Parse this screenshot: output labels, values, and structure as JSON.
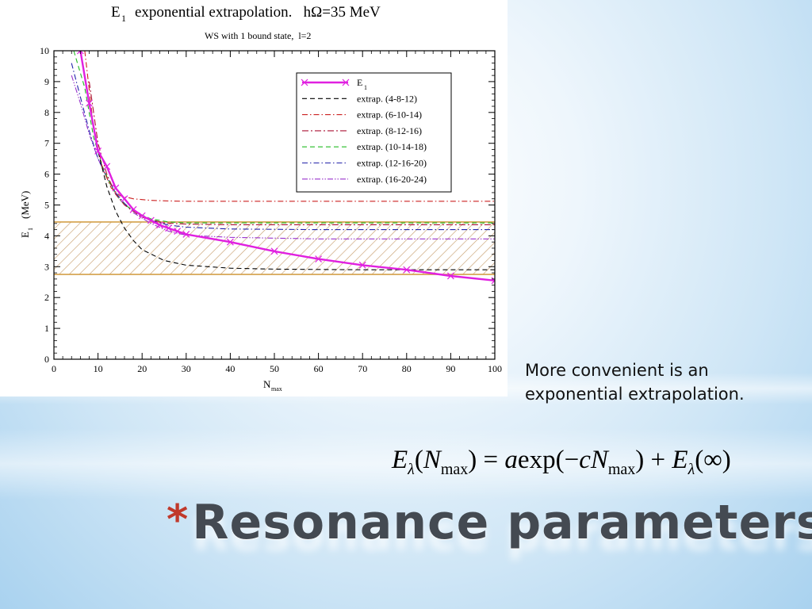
{
  "slide": {
    "note": "More convenient is an exponential extrapolation.",
    "formula": {
      "lhs_E": "E",
      "lhs_sub": "λ",
      "lhs_arg_open": "(",
      "lhs_N": "N",
      "lhs_N_sub": "max",
      "lhs_arg_close": ")",
      "equals": " = ",
      "a": "a",
      "exp": "exp(",
      "minus": "−",
      "c": "c",
      "N2": "N",
      "N2_sub": "max",
      "close": ")",
      "plus": " + ",
      "E2": "E",
      "E2_sub": "λ",
      "inf": "(∞)"
    },
    "bullet": "*",
    "title": "Resonance parameters"
  },
  "chart_data": {
    "type": "line",
    "title_main": "exponential extrapolation.   hΩ=35 MeV",
    "title_E": "E",
    "title_E_sub": "1",
    "subtitle": "WS with 1 bound state,  l=2",
    "xlabel": "N",
    "xlabel_sub": "max",
    "ylabel": "(MeV)",
    "ylabel_E": "E",
    "ylabel_E_sub": "1",
    "xlim": [
      0,
      100
    ],
    "ylim": [
      0,
      10
    ],
    "xticks": [
      "0",
      "10",
      "20",
      "30",
      "40",
      "50",
      "60",
      "70",
      "80",
      "90",
      "100"
    ],
    "yticks": [
      "0",
      "1",
      "2",
      "3",
      "4",
      "5",
      "6",
      "7",
      "8",
      "9",
      "10"
    ],
    "band": {
      "ymin": 2.75,
      "ymax": 4.45,
      "edge_color": "#d4a04a",
      "hatch_color": "#c8a070"
    },
    "series": [
      {
        "name": "E",
        "name_sub": "1",
        "style": "solid-marker",
        "color": "#e020e0",
        "x": [
          6,
          8,
          10,
          12,
          14,
          16,
          18,
          20,
          22,
          24,
          26,
          28,
          30,
          40,
          50,
          60,
          70,
          80,
          90,
          100
        ],
        "y": [
          10.0,
          8.3,
          6.75,
          6.25,
          5.55,
          5.2,
          4.85,
          4.65,
          4.5,
          4.35,
          4.25,
          4.15,
          4.05,
          3.8,
          3.5,
          3.25,
          3.05,
          2.9,
          2.7,
          2.55
        ]
      },
      {
        "name": "extrap. (4-8-12)",
        "style": "dash",
        "color": "#000000",
        "x": [
          6,
          8,
          10,
          12,
          14,
          16,
          18,
          20,
          25,
          30,
          40,
          50,
          60,
          70,
          80,
          90,
          100
        ],
        "y": [
          10.0,
          8.3,
          6.75,
          5.6,
          4.8,
          4.25,
          3.85,
          3.55,
          3.2,
          3.05,
          2.95,
          2.92,
          2.91,
          2.9,
          2.9,
          2.9,
          2.9
        ]
      },
      {
        "name": "extrap. (6-10-14)",
        "style": "dashdot",
        "color": "#cc2222",
        "x": [
          7,
          9,
          11,
          13,
          15,
          18,
          22,
          26,
          30,
          40,
          60,
          80,
          100
        ],
        "y": [
          10.0,
          7.5,
          6.2,
          5.55,
          5.3,
          5.2,
          5.15,
          5.13,
          5.12,
          5.12,
          5.12,
          5.12,
          5.12
        ]
      },
      {
        "name": "extrap. (8-12-16)",
        "style": "dashdotdash",
        "color": "#aa1133",
        "x": [
          8,
          10,
          12,
          14,
          16,
          20,
          25,
          30,
          40,
          60,
          80,
          100
        ],
        "y": [
          9.0,
          7.0,
          6.0,
          5.35,
          5.0,
          4.6,
          4.42,
          4.38,
          4.36,
          4.36,
          4.36,
          4.36
        ]
      },
      {
        "name": "extrap. (10-14-18)",
        "style": "dash",
        "color": "#22bb22",
        "x": [
          4.5,
          7,
          9,
          11,
          13,
          15,
          18,
          22,
          26,
          30,
          40,
          60,
          80,
          100
        ],
        "y": [
          10.0,
          8.8,
          7.2,
          6.25,
          5.6,
          5.15,
          4.8,
          4.55,
          4.45,
          4.42,
          4.42,
          4.42,
          4.42,
          4.42
        ]
      },
      {
        "name": "extrap. (12-16-20)",
        "style": "dashdot",
        "color": "#2222aa",
        "x": [
          4,
          6,
          8,
          10,
          12,
          14,
          16,
          18,
          22,
          26,
          30,
          40,
          60,
          80,
          100
        ],
        "y": [
          9.6,
          8.5,
          7.4,
          6.5,
          5.9,
          5.4,
          5.05,
          4.8,
          4.5,
          4.35,
          4.28,
          4.22,
          4.2,
          4.2,
          4.2
        ]
      },
      {
        "name": "extrap. (16-20-24)",
        "style": "dashdotdot",
        "color": "#9933cc",
        "x": [
          4,
          6,
          8,
          10,
          12,
          14,
          16,
          18,
          22,
          26,
          30,
          40,
          60,
          80,
          100
        ],
        "y": [
          9.2,
          8.3,
          7.3,
          6.5,
          5.9,
          5.4,
          5.05,
          4.75,
          4.4,
          4.15,
          4.02,
          3.95,
          3.9,
          3.9,
          3.9
        ]
      }
    ],
    "legend_placement": "top-right",
    "grid": false
  }
}
